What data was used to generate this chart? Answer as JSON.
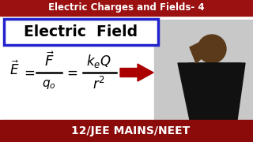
{
  "bg_color": "#ffffff",
  "top_bar_color": "#9b1010",
  "bottom_bar_color": "#8b0a0a",
  "top_text": "Electric Charges and Fields- 4",
  "top_text_color": "#ffffff",
  "bottom_text": "12/JEE MAINS/NEET",
  "bottom_text_color": "#ffffff",
  "box_title": "Electric  Field",
  "box_border_color": "#2222cc",
  "box_bg": "#ffffff",
  "arrow_color": "#aa0000",
  "person_bg": "#e8e8e8",
  "figsize": [
    3.2,
    1.8
  ],
  "dpi": 100
}
